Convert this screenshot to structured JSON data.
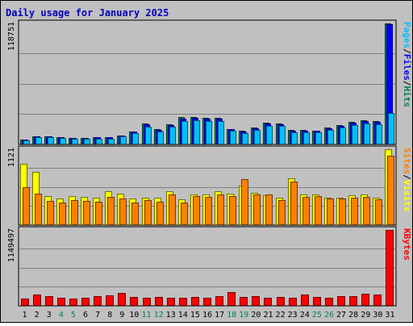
{
  "chart_data": {
    "title": "Daily usage for January 2025",
    "type": "bar",
    "categories": [
      "1",
      "2",
      "3",
      "4",
      "5",
      "6",
      "7",
      "8",
      "9",
      "10",
      "11",
      "12",
      "13",
      "14",
      "15",
      "16",
      "17",
      "18",
      "19",
      "20",
      "21",
      "22",
      "23",
      "24",
      "25",
      "26",
      "27",
      "28",
      "29",
      "30",
      "31"
    ],
    "weekend_days": [
      "4",
      "5",
      "11",
      "12",
      "18",
      "19",
      "25",
      "26"
    ],
    "panels": [
      {
        "id": "hits-files-pages",
        "y_tick_label": "118751",
        "ylim": [
          0,
          118751
        ],
        "side_label_parts": [
          {
            "text": "Pages",
            "color": "#00c0ff"
          },
          {
            "text": "/",
            "color": "#000000"
          },
          {
            "text": "Files",
            "color": "#0000ff"
          },
          {
            "text": "/",
            "color": "#000000"
          },
          {
            "text": "Hits",
            "color": "#00805c"
          }
        ],
        "series": [
          {
            "name": "Hits",
            "color": "#00805c",
            "values": [
              4300,
              7300,
              7500,
              6600,
              5700,
              5700,
              6200,
              6200,
              8300,
              12100,
              19900,
              14100,
              19400,
              26000,
              26100,
              25400,
              25300,
              14700,
              12700,
              16000,
              20400,
              20000,
              13400,
              13500,
              13100,
              15800,
              18400,
              21600,
              23000,
              22400,
              118751
            ]
          },
          {
            "name": "Files",
            "color": "#0000ff",
            "values": [
              4100,
              7000,
              7200,
              6300,
              5500,
              5500,
              6000,
              6000,
              8000,
              11600,
              19100,
              13500,
              18700,
              25100,
              25300,
              24500,
              24400,
              14000,
              12100,
              15400,
              19700,
              19300,
              12800,
              12900,
              12600,
              15200,
              17800,
              20900,
              22300,
              21600,
              118000
            ]
          },
          {
            "name": "Pages",
            "color": "#00c0ff",
            "values": [
              3500,
              6000,
              6200,
              5300,
              4600,
              4600,
              5000,
              5000,
              6900,
              10200,
              17000,
              12000,
              16700,
              22600,
              22800,
              22000,
              22000,
              12500,
              10700,
              13700,
              17600,
              17300,
              11300,
              11400,
              11100,
              13500,
              15900,
              18700,
              20000,
              19400,
              30000
            ]
          }
        ]
      },
      {
        "id": "visits-sites",
        "y_tick_label": "1121",
        "ylim": [
          0,
          1121
        ],
        "side_label_parts": [
          {
            "text": "Sites",
            "color": "#ff8000"
          },
          {
            "text": "/",
            "color": "#000000"
          },
          {
            "text": "Visits",
            "color": "#ffff00"
          }
        ],
        "series": [
          {
            "name": "Visits",
            "color": "#ffff00",
            "values": [
              900,
              780,
              420,
              390,
              420,
              410,
              400,
              500,
              460,
              380,
              400,
              400,
              500,
              370,
              450,
              440,
              490,
              460,
              580,
              470,
              430,
              400,
              690,
              450,
              450,
              400,
              400,
              430,
              440,
              400,
              1121
            ]
          },
          {
            "name": "Sites",
            "color": "#ff8000",
            "values": [
              560,
              460,
              350,
              330,
              360,
              350,
              340,
              410,
              390,
              330,
              360,
              340,
              440,
              330,
              420,
              410,
              450,
              420,
              680,
              440,
              440,
              360,
              640,
              410,
              420,
              390,
              390,
              400,
              410,
              370,
              1030
            ]
          }
        ]
      },
      {
        "id": "kbytes",
        "y_tick_label": "1149497",
        "ylim": [
          0,
          1149497
        ],
        "side_label_parts": [
          {
            "text": "KBytes",
            "color": "#ff0000"
          }
        ],
        "series": [
          {
            "name": "KBytes",
            "color": "#ff0000",
            "values": [
              105000,
              155000,
              140000,
              110000,
              105000,
              110000,
              135000,
              145000,
              185000,
              120000,
              115000,
              120000,
              115000,
              110000,
              120000,
              115000,
              140000,
              200000,
              125000,
              130000,
              110000,
              125000,
              115000,
              155000,
              125000,
              110000,
              130000,
              130000,
              175000,
              165000,
              1149497
            ]
          }
        ]
      }
    ]
  }
}
